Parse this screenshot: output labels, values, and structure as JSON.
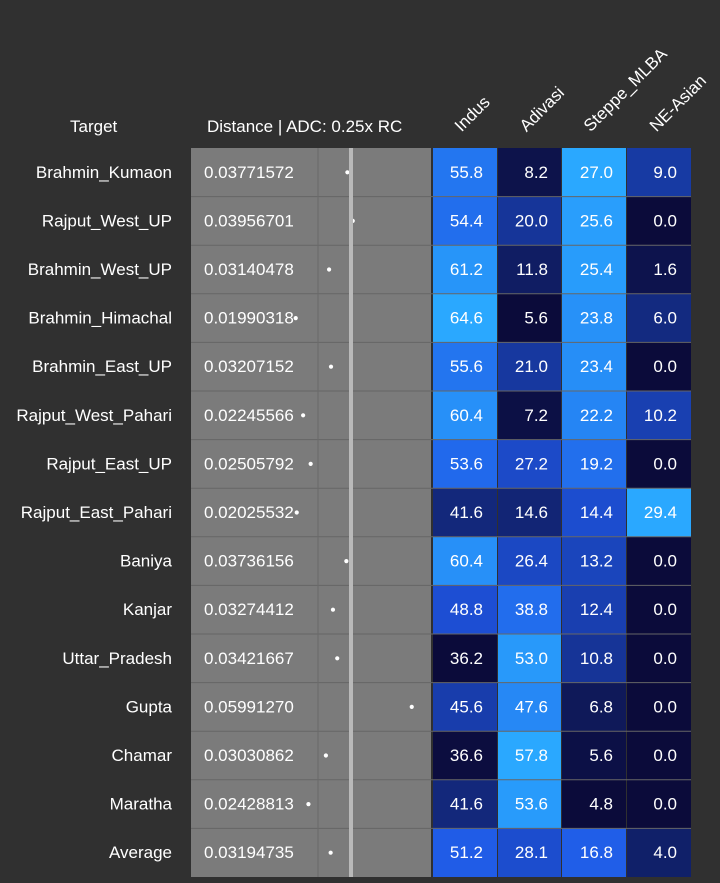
{
  "colors": {
    "background": "#303030",
    "distance_bg": "#7b7b7b",
    "marker_line": "#b9b9b9",
    "dot": "#ffffff",
    "scale_low": "#0b0b3a",
    "scale_mid": "#1f57e6",
    "scale_high": "#2aa8ff"
  },
  "headers": {
    "target": "Target",
    "distance": "Distance | ADC: 0.25x RC",
    "components": [
      "Indus",
      "Adivasi",
      "Steppe_MLBA",
      "NE-Asian"
    ]
  },
  "chart_data": {
    "type": "table",
    "columns": [
      "Target",
      "Distance | ADC: 0.25x RC",
      "Indus",
      "Adivasi",
      "Steppe_MLBA",
      "NE-Asian"
    ],
    "rows": [
      {
        "target": "Brahmin_Kumaon",
        "distance": "0.03771572",
        "values": [
          "55.8",
          "8.2",
          "27.0",
          "9.0"
        ]
      },
      {
        "target": "Rajput_West_UP",
        "distance": "0.03956701",
        "values": [
          "54.4",
          "20.0",
          "25.6",
          "0.0"
        ]
      },
      {
        "target": "Brahmin_West_UP",
        "distance": "0.03140478",
        "values": [
          "61.2",
          "11.8",
          "25.4",
          "1.6"
        ]
      },
      {
        "target": "Brahmin_Himachal",
        "distance": "0.01990318",
        "values": [
          "64.6",
          "5.6",
          "23.8",
          "6.0"
        ]
      },
      {
        "target": "Brahmin_East_UP",
        "distance": "0.03207152",
        "values": [
          "55.6",
          "21.0",
          "23.4",
          "0.0"
        ]
      },
      {
        "target": "Rajput_West_Pahari",
        "distance": "0.02245566",
        "values": [
          "60.4",
          "7.2",
          "22.2",
          "10.2"
        ]
      },
      {
        "target": "Rajput_East_UP",
        "distance": "0.02505792",
        "values": [
          "53.6",
          "27.2",
          "19.2",
          "0.0"
        ]
      },
      {
        "target": "Rajput_East_Pahari",
        "distance": "0.02025532",
        "values": [
          "41.6",
          "14.6",
          "14.4",
          "29.4"
        ]
      },
      {
        "target": "Baniya",
        "distance": "0.03736156",
        "values": [
          "60.4",
          "26.4",
          "13.2",
          "0.0"
        ]
      },
      {
        "target": "Kanjar",
        "distance": "0.03274412",
        "values": [
          "48.8",
          "38.8",
          "12.4",
          "0.0"
        ]
      },
      {
        "target": "Uttar_Pradesh",
        "distance": "0.03421667",
        "values": [
          "36.2",
          "53.0",
          "10.8",
          "0.0"
        ]
      },
      {
        "target": "Gupta",
        "distance": "0.05991270",
        "values": [
          "45.6",
          "47.6",
          "6.8",
          "0.0"
        ]
      },
      {
        "target": "Chamar",
        "distance": "0.03030862",
        "values": [
          "36.6",
          "57.8",
          "5.6",
          "0.0"
        ]
      },
      {
        "target": "Maratha",
        "distance": "0.02428813",
        "values": [
          "41.6",
          "53.6",
          "4.8",
          "0.0"
        ]
      },
      {
        "target": "Average",
        "distance": "0.03194735",
        "values": [
          "51.2",
          "28.1",
          "16.8",
          "4.0"
        ]
      }
    ]
  }
}
